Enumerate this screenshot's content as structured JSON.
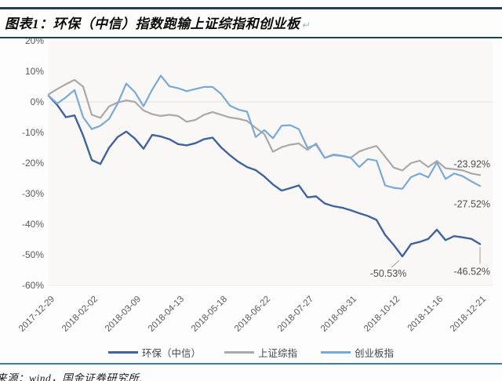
{
  "figure": {
    "title": "图表1：环保（中信）指数跑输上证综指和创业板",
    "return_mark": "↵",
    "source": "来源：wind，国金证券研究所",
    "source_tail": "、"
  },
  "colors": {
    "title_rule": "#24404e",
    "footer_rule": "#3f79b7",
    "grid_line": "#e2e0e3",
    "plot_background": "#faf8f6",
    "axis_text": "#595959",
    "annotation_text": "#4d4d4d"
  },
  "chart_data": {
    "type": "line",
    "title": "",
    "xlabel": "",
    "ylabel": "",
    "ylim": [
      -60,
      20
    ],
    "grid": "horizontal-zero-only",
    "legend_position": "bottom",
    "y_ticks": [
      "20%",
      "10%",
      "0%",
      "-10%",
      "-20%",
      "-30%",
      "-40%",
      "-50%",
      "-60%"
    ],
    "x_tick_labels": [
      "2017-12-29",
      "2018-02-02",
      "2018-03-09",
      "2018-04-13",
      "2018-05-18",
      "2018-06-22",
      "2018-07-27",
      "2018-08-31",
      "2018-10-12",
      "2018-11-16",
      "2018-12-21"
    ],
    "points_per_x_tick": 5,
    "n_points": 51,
    "series": [
      {
        "name": "环保（中信）",
        "color": "#40639c",
        "width": 2.4,
        "values": [
          2.0,
          -1.0,
          -5.0,
          -4.4,
          -11.0,
          -19.0,
          -20.3,
          -15.0,
          -11.5,
          -9.7,
          -12.0,
          -15.3,
          -10.8,
          -11.3,
          -12.2,
          -13.8,
          -14.2,
          -13.5,
          -12.2,
          -11.7,
          -14.9,
          -17.4,
          -19.6,
          -21.3,
          -22.3,
          -24.4,
          -27.0,
          -29.0,
          -28.2,
          -27.3,
          -31.2,
          -30.9,
          -33.2,
          -34.1,
          -34.6,
          -35.4,
          -36.4,
          -37.3,
          -38.6,
          -43.5,
          -46.8,
          -50.53,
          -46.5,
          -45.8,
          -44.8,
          -41.8,
          -45.2,
          -43.9,
          -44.3,
          -44.8,
          -46.52
        ]
      },
      {
        "name": "上证综指",
        "color": "#a9a9a9",
        "width": 2.2,
        "values": [
          2.5,
          4.2,
          5.8,
          7.2,
          5.0,
          -4.2,
          -5.2,
          -1.5,
          -0.2,
          0.5,
          0.0,
          -2.8,
          -4.0,
          -4.6,
          -4.2,
          -4.6,
          -6.5,
          -5.9,
          -4.2,
          -3.3,
          -4.2,
          -5.1,
          -5.5,
          -6.2,
          -8.5,
          -10.5,
          -16.3,
          -14.8,
          -14.0,
          -13.6,
          -15.7,
          -13.6,
          -18.3,
          -17.4,
          -17.7,
          -18.3,
          -16.2,
          -15.2,
          -14.4,
          -17.9,
          -21.5,
          -22.4,
          -20.0,
          -19.2,
          -21.3,
          -19.3,
          -21.7,
          -22.0,
          -22.4,
          -23.4,
          -23.92
        ]
      },
      {
        "name": "创业板指",
        "color": "#78aad6",
        "width": 2.2,
        "values": [
          2.0,
          -0.5,
          1.5,
          3.9,
          -5.0,
          -8.9,
          -7.8,
          -5.6,
          -0.5,
          6.0,
          3.2,
          -1.4,
          4.0,
          8.6,
          5.1,
          4.5,
          3.5,
          4.2,
          4.9,
          4.9,
          2.6,
          -1.2,
          -2.5,
          -3.2,
          -11.5,
          -9.2,
          -11.9,
          -7.8,
          -7.6,
          -8.9,
          -15.0,
          -14.0,
          -18.3,
          -17.2,
          -17.6,
          -18.2,
          -21.3,
          -18.7,
          -19.2,
          -27.3,
          -28.1,
          -28.4,
          -24.6,
          -23.4,
          -24.7,
          -19.8,
          -25.2,
          -23.4,
          -24.3,
          -26.0,
          -27.52
        ]
      }
    ],
    "annotations": [
      {
        "text": "-23.92%",
        "series_index": 1,
        "point_index": 50,
        "position": "above-end"
      },
      {
        "text": "-27.52%",
        "series_index": 2,
        "point_index": 50,
        "position": "below-end"
      },
      {
        "text": "-50.53%",
        "series_index": 0,
        "point_index": 41,
        "position": "valley-leader"
      },
      {
        "text": "-46.52%",
        "series_index": 0,
        "point_index": 50,
        "position": "end-leader"
      }
    ]
  }
}
